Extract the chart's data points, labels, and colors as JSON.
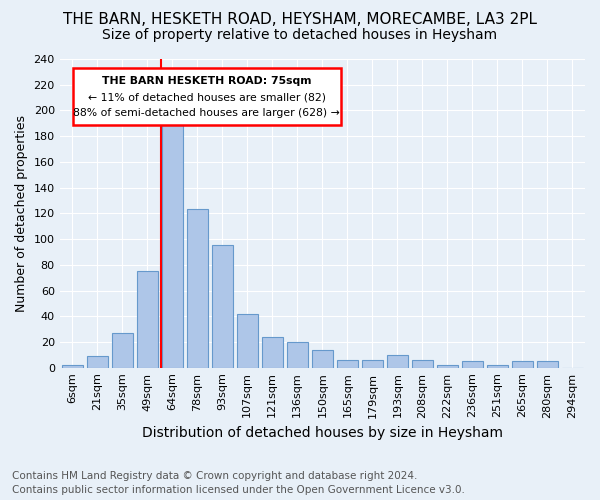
{
  "title": "THE BARN, HESKETH ROAD, HEYSHAM, MORECAMBE, LA3 2PL",
  "subtitle": "Size of property relative to detached houses in Heysham",
  "xlabel": "Distribution of detached houses by size in Heysham",
  "ylabel": "Number of detached properties",
  "categories": [
    "6sqm",
    "21sqm",
    "35sqm",
    "49sqm",
    "64sqm",
    "78sqm",
    "93sqm",
    "107sqm",
    "121sqm",
    "136sqm",
    "150sqm",
    "165sqm",
    "179sqm",
    "193sqm",
    "208sqm",
    "222sqm",
    "236sqm",
    "251sqm",
    "265sqm",
    "280sqm",
    "294sqm"
  ],
  "values": [
    2,
    9,
    27,
    75,
    198,
    123,
    95,
    42,
    24,
    20,
    14,
    6,
    6,
    10,
    6,
    2,
    5,
    2,
    5,
    5,
    0
  ],
  "bar_color": "#aec6e8",
  "bar_edgecolor": "#6699cc",
  "annotation_title": "THE BARN HESKETH ROAD: 75sqm",
  "annotation_line1": "← 11% of detached houses are smaller (82)",
  "annotation_line2": "88% of semi-detached houses are larger (628) →",
  "annotation_box_color": "white",
  "annotation_box_edgecolor": "red",
  "vline_color": "red",
  "vline_x": 3.57,
  "ylim": [
    0,
    240
  ],
  "yticks": [
    0,
    20,
    40,
    60,
    80,
    100,
    120,
    140,
    160,
    180,
    200,
    220,
    240
  ],
  "bg_color": "#e8f0f8",
  "footer1": "Contains HM Land Registry data © Crown copyright and database right 2024.",
  "footer2": "Contains public sector information licensed under the Open Government Licence v3.0.",
  "title_fontsize": 11,
  "subtitle_fontsize": 10,
  "xlabel_fontsize": 10,
  "ylabel_fontsize": 9,
  "tick_fontsize": 8,
  "footer_fontsize": 7.5
}
